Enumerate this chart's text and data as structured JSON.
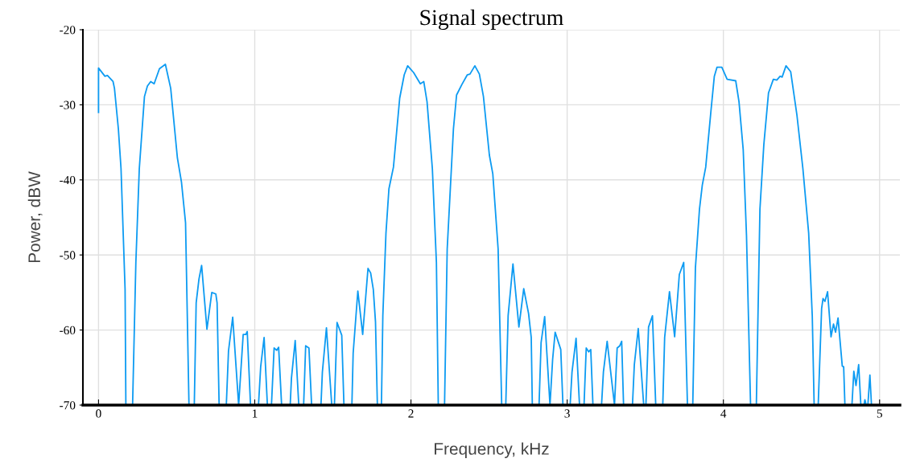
{
  "chart_data": {
    "type": "line",
    "title": "Signal spectrum",
    "xlabel": "Frequency, kHz",
    "ylabel": "Power, dBW",
    "xlim": [
      -0.1,
      5.13
    ],
    "xticks": [
      0,
      1,
      2,
      3,
      4,
      5
    ],
    "ylim": [
      -70,
      -20
    ],
    "yticks": [
      -70,
      -60,
      -50,
      -40,
      -30,
      -20
    ],
    "grid": true,
    "legend": false,
    "marker": "none",
    "line_style": "solid",
    "series": [
      {
        "color": "#0d9bf2",
        "x": [
          0.0,
          0.0,
          0.041,
          0.057,
          0.093,
          0.102,
          0.127,
          0.144,
          0.17,
          0.175,
          0.218,
          0.239,
          0.261,
          0.294,
          0.313,
          0.334,
          0.356,
          0.39,
          0.428,
          0.462,
          0.505,
          0.531,
          0.557,
          0.579,
          0.613,
          0.625,
          0.643,
          0.66,
          0.694,
          0.725,
          0.751,
          0.759,
          0.772,
          0.818,
          0.832,
          0.859,
          0.897,
          0.926,
          0.943,
          0.952,
          0.973,
          1.024,
          1.038,
          1.06,
          1.081,
          1.107,
          1.124,
          1.141,
          1.153,
          1.172,
          1.227,
          1.235,
          1.259,
          1.282,
          1.313,
          1.326,
          1.347,
          1.364,
          1.424,
          1.433,
          1.459,
          1.493,
          1.51,
          1.527,
          1.557,
          1.571,
          1.622,
          1.63,
          1.66,
          1.691,
          1.725,
          1.742,
          1.759,
          1.773,
          1.785,
          1.811,
          1.82,
          1.84,
          1.859,
          1.888,
          1.928,
          1.957,
          1.979,
          2.017,
          2.06,
          2.082,
          2.103,
          2.137,
          2.163,
          2.175,
          2.215,
          2.232,
          2.272,
          2.292,
          2.326,
          2.361,
          2.378,
          2.409,
          2.438,
          2.464,
          2.502,
          2.524,
          2.558,
          2.581,
          2.607,
          2.622,
          2.653,
          2.691,
          2.722,
          2.753,
          2.77,
          2.777,
          2.82,
          2.833,
          2.856,
          2.89,
          2.907,
          2.923,
          2.959,
          2.973,
          3.019,
          3.031,
          3.057,
          3.079,
          3.108,
          3.122,
          3.138,
          3.151,
          3.165,
          3.22,
          3.232,
          3.256,
          3.303,
          3.32,
          3.337,
          3.349,
          3.361,
          3.418,
          3.43,
          3.455,
          3.49,
          3.504,
          3.521,
          3.546,
          3.567,
          3.612,
          3.624,
          3.655,
          3.688,
          3.718,
          3.746,
          3.77,
          3.804,
          3.821,
          3.847,
          3.865,
          3.887,
          3.921,
          3.942,
          3.959,
          3.99,
          4.024,
          4.079,
          4.1,
          4.127,
          4.148,
          4.174,
          4.211,
          4.234,
          4.259,
          4.289,
          4.32,
          4.342,
          4.363,
          4.376,
          4.401,
          4.431,
          4.471,
          4.509,
          4.546,
          4.569,
          4.581,
          4.607,
          4.629,
          4.638,
          4.65,
          4.667,
          4.689,
          4.705,
          4.718,
          4.734,
          4.761,
          4.77,
          4.778,
          4.823,
          4.835,
          4.849,
          4.866,
          4.88,
          4.9,
          4.906,
          4.914,
          4.925,
          4.938,
          4.948
        ],
        "values": [
          -31.0,
          -25.1,
          -26.2,
          -26.1,
          -26.9,
          -27.8,
          -33.2,
          -38.5,
          -54.6,
          -70,
          -70,
          -51.0,
          -38.5,
          -28.9,
          -27.5,
          -26.9,
          -27.2,
          -25.2,
          -24.6,
          -27.8,
          -37.1,
          -40.3,
          -45.7,
          -70,
          -70,
          -56.4,
          -53.2,
          -51.4,
          -59.9,
          -55.0,
          -55.2,
          -56.4,
          -70,
          -70,
          -62.8,
          -58.3,
          -70,
          -60.6,
          -60.6,
          -60.2,
          -70,
          -70,
          -64.9,
          -61.0,
          -70,
          -70,
          -62.4,
          -62.7,
          -62.3,
          -70,
          -70,
          -66.4,
          -61.4,
          -70,
          -70,
          -62.1,
          -62.4,
          -70,
          -70,
          -65.6,
          -59.7,
          -70,
          -70,
          -59.0,
          -60.7,
          -70,
          -70,
          -63.1,
          -54.8,
          -60.6,
          -51.8,
          -52.4,
          -54.6,
          -58.9,
          -70,
          -70,
          -58.1,
          -47.1,
          -41.2,
          -38.3,
          -29.1,
          -26.0,
          -24.8,
          -25.7,
          -27.2,
          -26.9,
          -29.6,
          -38.5,
          -51.0,
          -70,
          -70,
          -49.2,
          -33.2,
          -28.7,
          -27.3,
          -26.0,
          -25.9,
          -24.8,
          -25.9,
          -28.9,
          -36.7,
          -39.2,
          -49.2,
          -70,
          -70,
          -58.1,
          -51.2,
          -59.6,
          -54.5,
          -57.8,
          -61.0,
          -70,
          -70,
          -61.7,
          -58.2,
          -70,
          -63.9,
          -60.3,
          -62.6,
          -70,
          -70,
          -65.6,
          -61.1,
          -70,
          -70,
          -62.4,
          -62.9,
          -62.6,
          -70,
          -70,
          -65.6,
          -61.5,
          -70,
          -62.4,
          -62.1,
          -61.5,
          -70,
          -70,
          -64.6,
          -59.8,
          -70,
          -70,
          -59.6,
          -58.1,
          -70,
          -70,
          -61.0,
          -54.9,
          -60.9,
          -52.6,
          -51.0,
          -70,
          -70,
          -51.7,
          -43.9,
          -40.7,
          -38.3,
          -30.7,
          -26.2,
          -25.0,
          -25.0,
          -26.6,
          -26.8,
          -29.6,
          -36.0,
          -47.4,
          -70,
          -70,
          -43.9,
          -35.3,
          -28.4,
          -26.6,
          -26.7,
          -26.2,
          -26.3,
          -24.8,
          -25.6,
          -31.4,
          -38.5,
          -47.1,
          -58.1,
          -70,
          -70,
          -57.1,
          -55.8,
          -56.2,
          -54.9,
          -60.9,
          -59.2,
          -60.3,
          -58.4,
          -64.8,
          -64.9,
          -70,
          -70,
          -65.5,
          -67.4,
          -64.6,
          -70,
          -70,
          -69.3,
          -70,
          -70,
          -66.0,
          -70
        ]
      }
    ]
  }
}
